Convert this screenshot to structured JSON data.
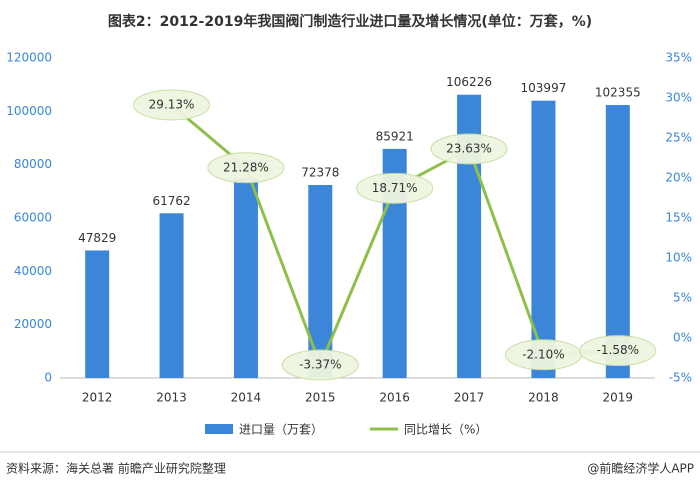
{
  "chart_data": {
    "type": "bar-line",
    "title": "图表2：2012-2019年我国阀门制造行业进口量及增长情况(单位：万套，%)",
    "categories": [
      "2012",
      "2013",
      "2014",
      "2015",
      "2016",
      "2017",
      "2018",
      "2019"
    ],
    "series": [
      {
        "name": "进口量（万套）",
        "color": "#3b86d8",
        "type": "bar",
        "values": [
          47829,
          61762,
          74902,
          72378,
          85921,
          106226,
          103997,
          102355
        ]
      },
      {
        "name": "同比增长（%）",
        "color": "#8dc04a",
        "type": "line",
        "axis": "y2",
        "values": [
          null,
          29.13,
          21.28,
          -3.37,
          18.71,
          23.63,
          -2.1,
          -1.58
        ],
        "value_labels": [
          null,
          "29.13%",
          "21.28%",
          "-3.37%",
          "18.71%",
          "23.63%",
          "-2.10%",
          "-1.58%"
        ]
      }
    ],
    "ylim": [
      0,
      120000
    ],
    "yticks": [
      0,
      20000,
      40000,
      60000,
      80000,
      100000,
      120000
    ],
    "y2lim": [
      -5,
      35
    ],
    "y2ticks": [
      {
        "value": -5,
        "label": "-5%"
      },
      {
        "value": 0,
        "label": "0%"
      },
      {
        "value": 5,
        "label": "5%"
      },
      {
        "value": 10,
        "label": "10%"
      },
      {
        "value": 15,
        "label": "15%"
      },
      {
        "value": 20,
        "label": "20%"
      },
      {
        "value": 25,
        "label": "25%"
      },
      {
        "value": 30,
        "label": "30%"
      },
      {
        "value": 35,
        "label": "35%"
      }
    ],
    "source": "资料来源：海关总署 前瞻产业研究院整理",
    "footer": "@前瞻经济学人APP"
  }
}
